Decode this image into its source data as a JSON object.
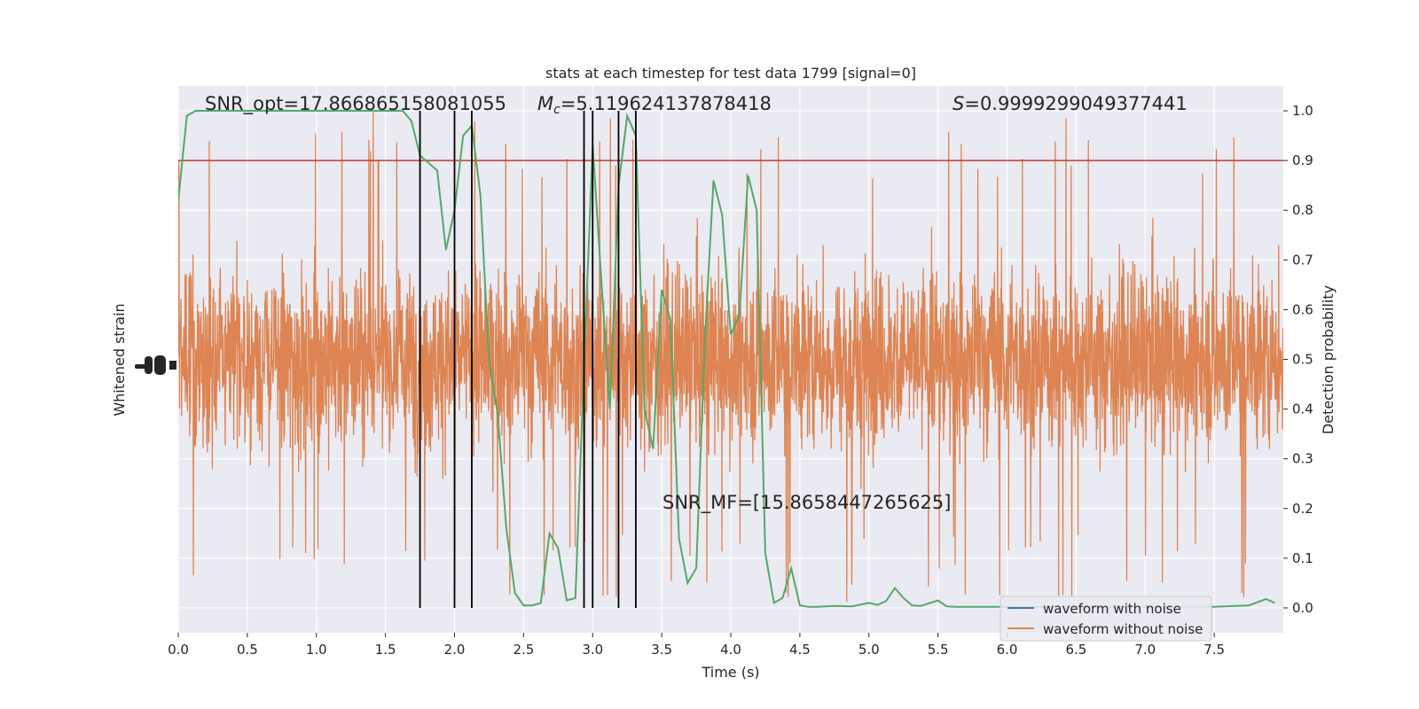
{
  "chart_data": {
    "type": "line",
    "title": "stats at each timestep for test data 1799 [signal=0]",
    "xlabel": "Time (s)",
    "ylabel_left": "Whitened strain",
    "ylabel_right": "Detection probability",
    "xlim": [
      0.0,
      8.0
    ],
    "ylim_right": [
      -0.05,
      1.05
    ],
    "x_ticks": [
      "0.0",
      "0.5",
      "1.0",
      "1.5",
      "2.0",
      "2.5",
      "3.0",
      "3.5",
      "4.0",
      "4.5",
      "5.0",
      "5.5",
      "6.0",
      "6.5",
      "7.0",
      "7.5"
    ],
    "y_ticks_right": [
      "0.0",
      "0.1",
      "0.2",
      "0.3",
      "0.4",
      "0.5",
      "0.6",
      "0.7",
      "0.8",
      "0.9",
      "1.0"
    ],
    "grid": true,
    "legend_position": "bottom-right",
    "annotations": {
      "snr_opt": "SNR_opt=17.866865158081055",
      "mc_symbol": "M",
      "mc_sub": "c",
      "mc_value": "=5.119624137878418",
      "s_symbol": "S",
      "s_value": "=0.9999299049377441",
      "snr_mf": "SNR_MF=[15.8658447265625]"
    },
    "threshold": {
      "value": 0.9,
      "color": "#c0392b"
    },
    "vertical_lines_x": [
      1.75,
      2.0,
      2.125,
      2.9375,
      3.0,
      3.1875,
      3.3125
    ],
    "series": [
      {
        "name": "waveform with noise",
        "color": "#4c72b0",
        "kind": "strain"
      },
      {
        "name": "waveform without noise",
        "color": "#dd8452",
        "kind": "strain",
        "approx_envelope_prob": [
          0.0,
          1.0
        ]
      },
      {
        "color": "#55a868",
        "kind": "probability",
        "x": [
          0.0,
          0.0625,
          0.125,
          0.25,
          0.5,
          0.75,
          1.0,
          1.25,
          1.5,
          1.625,
          1.6875,
          1.75,
          1.875,
          1.9375,
          2.0,
          2.0625,
          2.125,
          2.1875,
          2.25,
          2.3125,
          2.375,
          2.4375,
          2.5,
          2.5625,
          2.625,
          2.6875,
          2.75,
          2.8125,
          2.875,
          2.9375,
          3.0,
          3.0625,
          3.125,
          3.1875,
          3.25,
          3.3125,
          3.375,
          3.4375,
          3.5,
          3.5625,
          3.625,
          3.6875,
          3.75,
          3.8125,
          3.875,
          3.9375,
          4.0,
          4.0625,
          4.125,
          4.1875,
          4.25,
          4.3125,
          4.375,
          4.4375,
          4.5,
          4.5625,
          4.625,
          4.75,
          4.875,
          5.0,
          5.0625,
          5.125,
          5.1875,
          5.25,
          5.3125,
          5.375,
          5.5,
          5.5625,
          5.625,
          5.75,
          6.0,
          6.5,
          7.0,
          7.5,
          7.75,
          7.875,
          7.9375
        ],
        "values": [
          0.82,
          0.99,
          1.0,
          1.0,
          1.0,
          1.0,
          1.0,
          1.0,
          1.0,
          1.0,
          0.98,
          0.91,
          0.88,
          0.72,
          0.8,
          0.95,
          0.97,
          0.83,
          0.5,
          0.39,
          0.16,
          0.03,
          0.005,
          0.005,
          0.01,
          0.15,
          0.12,
          0.015,
          0.02,
          0.49,
          0.93,
          0.66,
          0.4,
          0.85,
          0.99,
          0.95,
          0.4,
          0.32,
          0.64,
          0.58,
          0.14,
          0.05,
          0.08,
          0.54,
          0.86,
          0.79,
          0.55,
          0.59,
          0.87,
          0.8,
          0.11,
          0.01,
          0.02,
          0.08,
          0.005,
          0.002,
          0.002,
          0.004,
          0.003,
          0.01,
          0.006,
          0.014,
          0.04,
          0.02,
          0.005,
          0.004,
          0.015,
          0.003,
          0.002,
          0.002,
          0.002,
          0.002,
          0.002,
          0.002,
          0.005,
          0.018,
          0.01
        ]
      }
    ]
  }
}
